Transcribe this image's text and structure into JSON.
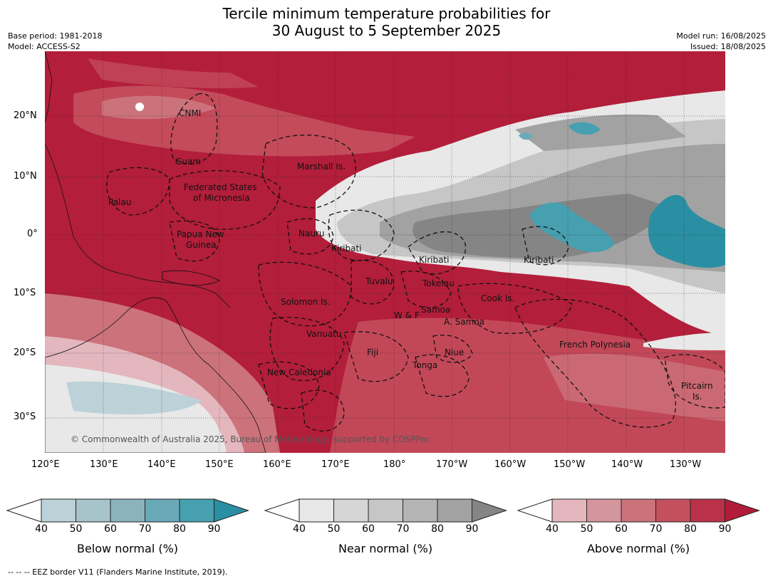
{
  "title_line1": "Tercile minimum temperature probabilities for",
  "title_line2": "30 August to 5 September 2025",
  "base_period": "Base period: 1981-2018",
  "model": "Model: ACCESS-S2",
  "model_run": "Model run: 16/08/2025",
  "issued": "Issued: 18/08/2025",
  "copyright": "© Commonwealth of Australia 2025, Bureau of Meteorology, supported by COSPPac",
  "eez_note": "--  --  -- EEZ border V11 (Flanders Marine Institute, 2019).",
  "lat_labels": [
    "20°N",
    "10°N",
    "0°",
    "10°S",
    "20°S",
    "30°S"
  ],
  "lon_labels": [
    "120°E",
    "130°E",
    "140°E",
    "150°E",
    "160°E",
    "170°E",
    "180°",
    "170°W",
    "160°W",
    "150°W",
    "140°W",
    "130°W"
  ],
  "places": [
    "CNMI",
    "Guam",
    "Marshall Is.",
    "Palau",
    "Federated States",
    "of Micronesia",
    "Nauru",
    "Papua New",
    "Guinea",
    "Kiribati",
    "Kiribati",
    "Kiribati",
    "Tuvalu",
    "Tokelau",
    "Cook Is.",
    "Solomon Is.",
    "W & F",
    "Samoa",
    "A. Samoa",
    "Vanuatu",
    "Fiji",
    "Niue",
    "Tonga",
    "French Polynesia",
    "New Caledonia",
    "Pitcairn",
    "Is."
  ],
  "colorbars": [
    {
      "label": "Below normal (%)",
      "ticks": [
        "40",
        "50",
        "60",
        "70",
        "80",
        "90"
      ],
      "colors": [
        "#bcd1d8",
        "#a6c4c9",
        "#8bb3be",
        "#6aa9b8",
        "#46a0b0",
        "#2a8fa3"
      ]
    },
    {
      "label": "Near normal (%)",
      "ticks": [
        "40",
        "50",
        "60",
        "70",
        "80",
        "90"
      ],
      "colors": [
        "#e8e8e8",
        "#d6d6d6",
        "#c6c6c6",
        "#b4b4b4",
        "#a2a2a2",
        "#858585"
      ]
    },
    {
      "label": "Above normal (%)",
      "ticks": [
        "40",
        "50",
        "60",
        "70",
        "80",
        "90"
      ],
      "colors": [
        "#e3b7bd",
        "#d4959c",
        "#cc727b",
        "#c4505e",
        "#b9324a",
        "#b01c3a"
      ]
    }
  ]
}
